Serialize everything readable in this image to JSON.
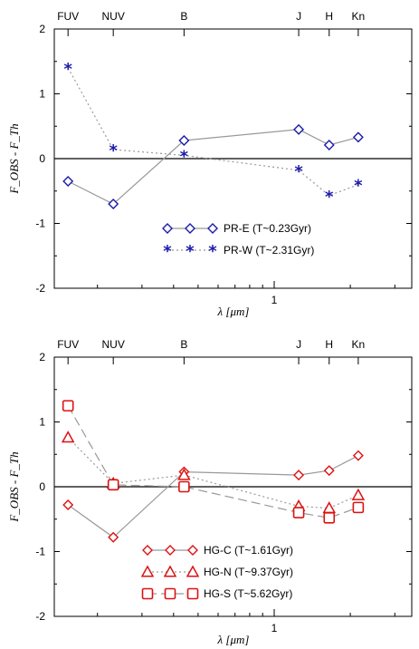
{
  "chart_data": [
    {
      "type": "line",
      "top_labels": [
        "FUV",
        "NUV",
        "B",
        "J",
        "H",
        "Kn"
      ],
      "ylim": [
        -2,
        2
      ],
      "y_ticks": [
        2,
        1,
        0,
        -1,
        -2
      ],
      "x_tick_labels": [
        "1"
      ],
      "xlabel": "λ [μm]",
      "ylabel": "F_OBS - F_Th",
      "xscale": "log",
      "x": [
        0.153,
        0.231,
        0.44,
        1.25,
        1.65,
        2.15
      ],
      "series": [
        {
          "name": "PR-E (T~0.23Gyr)",
          "marker": "diamond",
          "color": "#1a1aaa",
          "line": "solid",
          "line_color": "#999999",
          "values": [
            -0.35,
            -0.7,
            0.28,
            0.45,
            0.21,
            0.33
          ]
        },
        {
          "name": "PR-W (T~2.31Gyr)",
          "marker": "star",
          "color": "#1a1aaa",
          "line": "dotted",
          "line_color": "#999999",
          "values": [
            1.4,
            0.14,
            0.05,
            -0.18,
            -0.57,
            -0.4
          ]
        }
      ],
      "legend_position": "center-bottom"
    },
    {
      "type": "line",
      "top_labels": [
        "FUV",
        "NUV",
        "B",
        "J",
        "H",
        "Kn"
      ],
      "ylim": [
        -2,
        2
      ],
      "y_ticks": [
        2,
        1,
        0,
        -1,
        -2
      ],
      "x_tick_labels": [
        "1"
      ],
      "xlabel": "λ [μm]",
      "ylabel": "F_OBS - F_Th",
      "xscale": "log",
      "x": [
        0.153,
        0.231,
        0.44,
        1.25,
        1.65,
        2.15
      ],
      "series": [
        {
          "name": "HG-C (T~1.61Gyr)",
          "marker": "diamond",
          "color": "#dd1111",
          "line": "solid",
          "line_color": "#999999",
          "values": [
            -0.28,
            -0.78,
            0.23,
            0.18,
            0.25,
            0.48
          ]
        },
        {
          "name": "HG-N (T~9.37Gyr)",
          "marker": "triangle",
          "color": "#dd1111",
          "line": "dotted",
          "line_color": "#999999",
          "values": [
            0.76,
            0.05,
            0.18,
            -0.3,
            -0.33,
            -0.13
          ]
        },
        {
          "name": "HG-S (T~5.62Gyr)",
          "marker": "square",
          "color": "#dd1111",
          "line": "dashed",
          "line_color": "#999999",
          "values": [
            1.25,
            0.03,
            0.0,
            -0.4,
            -0.48,
            -0.32
          ]
        }
      ],
      "legend_position": "center-bottom"
    }
  ]
}
